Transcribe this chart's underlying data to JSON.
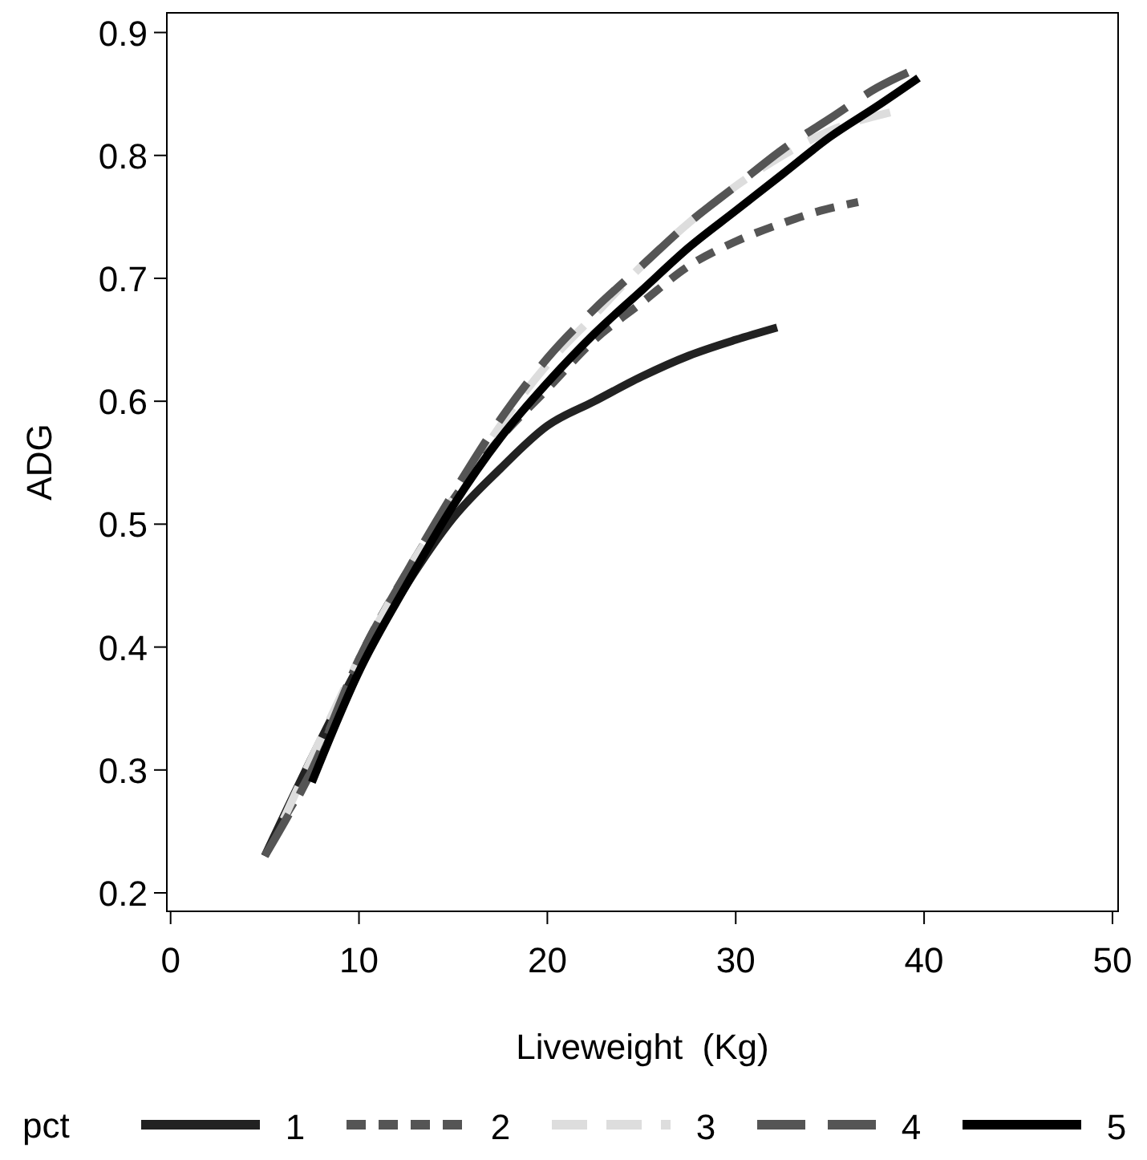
{
  "chart_data": {
    "type": "line",
    "xlabel": "Liveweight  (Kg)",
    "ylabel": "ADG",
    "legend_title": "pct",
    "legend": "bottom",
    "xlim": [
      -0.2,
      50.3
    ],
    "ylim": [
      0.185,
      0.916
    ],
    "xticks": [
      0,
      10,
      20,
      30,
      40,
      50
    ],
    "yticks": [
      0.2,
      0.3,
      0.4,
      0.5,
      0.6,
      0.7,
      0.8,
      0.9
    ],
    "marker": "none",
    "series": [
      {
        "name": "1",
        "color": "#222222",
        "line_style": "solid",
        "x": [
          5,
          7.5,
          10,
          12.5,
          15,
          17.5,
          20,
          22.5,
          25,
          27.5,
          30,
          32.2
        ],
        "values": [
          0.23,
          0.31,
          0.385,
          0.45,
          0.505,
          0.545,
          0.58,
          0.6,
          0.62,
          0.637,
          0.65,
          0.66
        ]
      },
      {
        "name": "2",
        "color": "#555555",
        "line_style": "dashed",
        "x": [
          6,
          7.5,
          10,
          12.5,
          15,
          17.5,
          20,
          22.5,
          25,
          27.5,
          30,
          32.5,
          34.5,
          36.5
        ],
        "values": [
          0.26,
          0.3,
          0.39,
          0.46,
          0.52,
          0.57,
          0.61,
          0.65,
          0.68,
          0.71,
          0.73,
          0.745,
          0.755,
          0.762
        ]
      },
      {
        "name": "3",
        "color": "#dddddd",
        "line_style": "dashed",
        "x": [
          6,
          7.5,
          10,
          12.5,
          15,
          17.5,
          20,
          22.5,
          25,
          27.5,
          30,
          32.5,
          35,
          38.2
        ],
        "values": [
          0.26,
          0.31,
          0.39,
          0.46,
          0.52,
          0.58,
          0.63,
          0.67,
          0.71,
          0.745,
          0.775,
          0.8,
          0.82,
          0.835
        ]
      },
      {
        "name": "4",
        "color": "#555555",
        "line_style": "dashed",
        "x": [
          5,
          7.5,
          10,
          12.5,
          15,
          17.5,
          20,
          22.5,
          25,
          27.5,
          30,
          32.5,
          35,
          37.5,
          39.8
        ],
        "values": [
          0.23,
          0.3,
          0.39,
          0.46,
          0.525,
          0.585,
          0.635,
          0.675,
          0.71,
          0.745,
          0.775,
          0.805,
          0.83,
          0.855,
          0.872
        ]
      },
      {
        "name": "5",
        "color": "#000000",
        "line_style": "solid",
        "x": [
          7.5,
          10,
          12.5,
          15,
          17.5,
          20,
          22.5,
          25,
          27.5,
          30,
          32.5,
          35,
          37.5,
          39.7
        ],
        "values": [
          0.29,
          0.38,
          0.45,
          0.515,
          0.57,
          0.615,
          0.655,
          0.69,
          0.725,
          0.755,
          0.785,
          0.815,
          0.84,
          0.863
        ]
      }
    ]
  }
}
